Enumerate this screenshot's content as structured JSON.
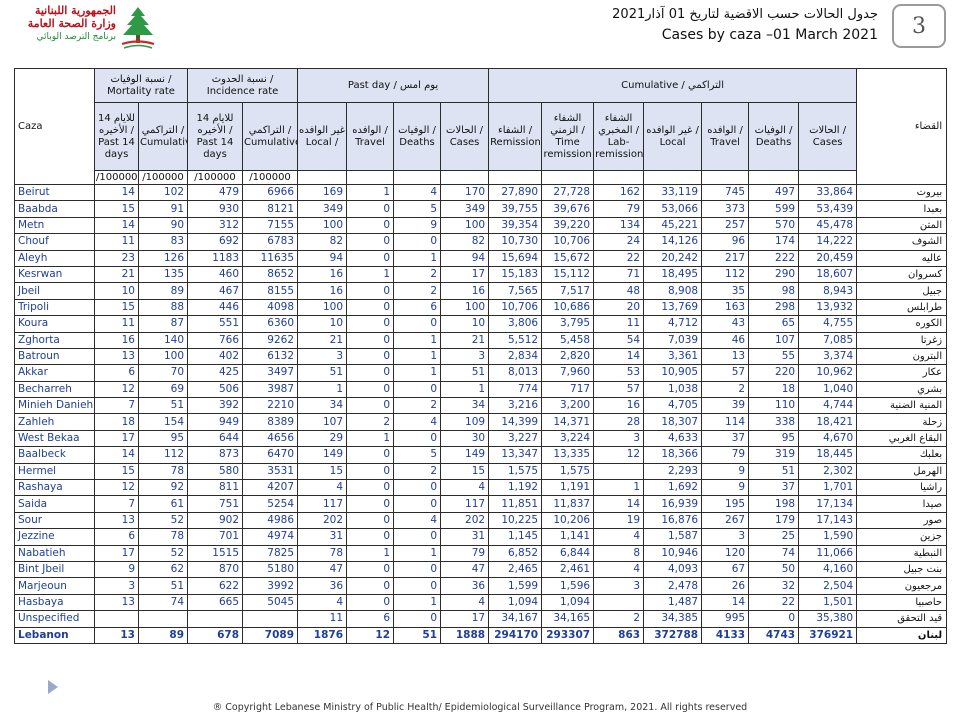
{
  "logo": {
    "line1": "الجمهورية اللبنانية",
    "line2": "وزارة الصحة العامة",
    "line3": "برنامج الترصد الوبائي"
  },
  "header": {
    "title_ar": "جدول الحالات حسب الاقضية لتاريخ 01 آذار2021",
    "title_en": "Cases by caza –01 March 2021",
    "page_number": "3"
  },
  "table_headers": {
    "caza": "Caza",
    "caza_ar": "القضاء",
    "mortality_rate": "نسبة الوفيات / Mortality rate",
    "incidence_rate": "نسبة الحدوث / Incidence rate",
    "past_day": "Past day / يوم امس",
    "cumulative": "Cumulative / التراكمي",
    "past14": "للايام 14 الأخيره / Past 14 days",
    "cumulative_col": "التراكمي / Cumulative",
    "local_day": "غير الوافده Local /",
    "travel": "الوافده / Travel",
    "deaths": "الوفيات / Deaths",
    "cases": "الحالات / Cases",
    "remission": "الشفاء / Remission",
    "time_remission": "الشفاء الزمني / Time remission",
    "lab_remission": "الشفاء المخبري / Lab-remission",
    "local_cum": "غير الوافده / Local",
    "unit": "/100000"
  },
  "rows": [
    {
      "name": "Beirut",
      "mr14": "14",
      "mrc": "102",
      "ir14": "479",
      "irc": "6966",
      "pd_local": "169",
      "pd_travel": "1",
      "pd_deaths": "4",
      "pd_cases": "170",
      "rem": "27,890",
      "time_rem": "27,728",
      "lab_rem": "162",
      "local": "33,119",
      "travel": "745",
      "deaths": "497",
      "cases": "33,864",
      "ar": "بيروت"
    },
    {
      "name": "Baabda",
      "mr14": "15",
      "mrc": "91",
      "ir14": "930",
      "irc": "8121",
      "pd_local": "349",
      "pd_travel": "0",
      "pd_deaths": "5",
      "pd_cases": "349",
      "rem": "39,755",
      "time_rem": "39,676",
      "lab_rem": "79",
      "local": "53,066",
      "travel": "373",
      "deaths": "599",
      "cases": "53,439",
      "ar": "بعبدا"
    },
    {
      "name": "Metn",
      "mr14": "14",
      "mrc": "90",
      "ir14": "312",
      "irc": "7155",
      "pd_local": "100",
      "pd_travel": "0",
      "pd_deaths": "9",
      "pd_cases": "100",
      "rem": "39,354",
      "time_rem": "39,220",
      "lab_rem": "134",
      "local": "45,221",
      "travel": "257",
      "deaths": "570",
      "cases": "45,478",
      "ar": "المتن"
    },
    {
      "name": "Chouf",
      "mr14": "11",
      "mrc": "83",
      "ir14": "692",
      "irc": "6783",
      "pd_local": "82",
      "pd_travel": "0",
      "pd_deaths": "0",
      "pd_cases": "82",
      "rem": "10,730",
      "time_rem": "10,706",
      "lab_rem": "24",
      "local": "14,126",
      "travel": "96",
      "deaths": "174",
      "cases": "14,222",
      "ar": "الشوف"
    },
    {
      "name": "Aleyh",
      "mr14": "23",
      "mrc": "126",
      "ir14": "1183",
      "irc": "11635",
      "pd_local": "94",
      "pd_travel": "0",
      "pd_deaths": "1",
      "pd_cases": "94",
      "rem": "15,694",
      "time_rem": "15,672",
      "lab_rem": "22",
      "local": "20,242",
      "travel": "217",
      "deaths": "222",
      "cases": "20,459",
      "ar": "عاليه"
    },
    {
      "name": "Kesrwan",
      "mr14": "21",
      "mrc": "135",
      "ir14": "460",
      "irc": "8652",
      "pd_local": "16",
      "pd_travel": "1",
      "pd_deaths": "2",
      "pd_cases": "17",
      "rem": "15,183",
      "time_rem": "15,112",
      "lab_rem": "71",
      "local": "18,495",
      "travel": "112",
      "deaths": "290",
      "cases": "18,607",
      "ar": "كسروان"
    },
    {
      "name": "Jbeil",
      "mr14": "10",
      "mrc": "89",
      "ir14": "467",
      "irc": "8155",
      "pd_local": "16",
      "pd_travel": "0",
      "pd_deaths": "2",
      "pd_cases": "16",
      "rem": "7,565",
      "time_rem": "7,517",
      "lab_rem": "48",
      "local": "8,908",
      "travel": "35",
      "deaths": "98",
      "cases": "8,943",
      "ar": "جبيل"
    },
    {
      "name": "Tripoli",
      "mr14": "15",
      "mrc": "88",
      "ir14": "446",
      "irc": "4098",
      "pd_local": "100",
      "pd_travel": "0",
      "pd_deaths": "6",
      "pd_cases": "100",
      "rem": "10,706",
      "time_rem": "10,686",
      "lab_rem": "20",
      "local": "13,769",
      "travel": "163",
      "deaths": "298",
      "cases": "13,932",
      "ar": "طرابلس"
    },
    {
      "name": "Koura",
      "mr14": "11",
      "mrc": "87",
      "ir14": "551",
      "irc": "6360",
      "pd_local": "10",
      "pd_travel": "0",
      "pd_deaths": "0",
      "pd_cases": "10",
      "rem": "3,806",
      "time_rem": "3,795",
      "lab_rem": "11",
      "local": "4,712",
      "travel": "43",
      "deaths": "65",
      "cases": "4,755",
      "ar": "الكوره"
    },
    {
      "name": "Zghorta",
      "mr14": "16",
      "mrc": "140",
      "ir14": "766",
      "irc": "9262",
      "pd_local": "21",
      "pd_travel": "0",
      "pd_deaths": "1",
      "pd_cases": "21",
      "rem": "5,512",
      "time_rem": "5,458",
      "lab_rem": "54",
      "local": "7,039",
      "travel": "46",
      "deaths": "107",
      "cases": "7,085",
      "ar": "زغرتا"
    },
    {
      "name": "Batroun",
      "mr14": "13",
      "mrc": "100",
      "ir14": "402",
      "irc": "6132",
      "pd_local": "3",
      "pd_travel": "0",
      "pd_deaths": "1",
      "pd_cases": "3",
      "rem": "2,834",
      "time_rem": "2,820",
      "lab_rem": "14",
      "local": "3,361",
      "travel": "13",
      "deaths": "55",
      "cases": "3,374",
      "ar": "البترون"
    },
    {
      "name": "Akkar",
      "mr14": "6",
      "mrc": "70",
      "ir14": "425",
      "irc": "3497",
      "pd_local": "51",
      "pd_travel": "0",
      "pd_deaths": "1",
      "pd_cases": "51",
      "rem": "8,013",
      "time_rem": "7,960",
      "lab_rem": "53",
      "local": "10,905",
      "travel": "57",
      "deaths": "220",
      "cases": "10,962",
      "ar": "عكار"
    },
    {
      "name": "Becharreh",
      "mr14": "12",
      "mrc": "69",
      "ir14": "506",
      "irc": "3987",
      "pd_local": "1",
      "pd_travel": "0",
      "pd_deaths": "0",
      "pd_cases": "1",
      "rem": "774",
      "time_rem": "717",
      "lab_rem": "57",
      "local": "1,038",
      "travel": "2",
      "deaths": "18",
      "cases": "1,040",
      "ar": "بشري"
    },
    {
      "name": "Minieh Danieh",
      "mr14": "7",
      "mrc": "51",
      "ir14": "392",
      "irc": "2210",
      "pd_local": "34",
      "pd_travel": "0",
      "pd_deaths": "2",
      "pd_cases": "34",
      "rem": "3,216",
      "time_rem": "3,200",
      "lab_rem": "16",
      "local": "4,705",
      "travel": "39",
      "deaths": "110",
      "cases": "4,744",
      "ar": "المنية الضنية"
    },
    {
      "name": "Zahleh",
      "mr14": "18",
      "mrc": "154",
      "ir14": "949",
      "irc": "8389",
      "pd_local": "107",
      "pd_travel": "2",
      "pd_deaths": "4",
      "pd_cases": "109",
      "rem": "14,399",
      "time_rem": "14,371",
      "lab_rem": "28",
      "local": "18,307",
      "travel": "114",
      "deaths": "338",
      "cases": "18,421",
      "ar": "زحلة"
    },
    {
      "name": "West Bekaa",
      "mr14": "17",
      "mrc": "95",
      "ir14": "644",
      "irc": "4656",
      "pd_local": "29",
      "pd_travel": "1",
      "pd_deaths": "0",
      "pd_cases": "30",
      "rem": "3,227",
      "time_rem": "3,224",
      "lab_rem": "3",
      "local": "4,633",
      "travel": "37",
      "deaths": "95",
      "cases": "4,670",
      "ar": "البقاع الغربي"
    },
    {
      "name": "Baalbeck",
      "mr14": "14",
      "mrc": "112",
      "ir14": "873",
      "irc": "6470",
      "pd_local": "149",
      "pd_travel": "0",
      "pd_deaths": "5",
      "pd_cases": "149",
      "rem": "13,347",
      "time_rem": "13,335",
      "lab_rem": "12",
      "local": "18,366",
      "travel": "79",
      "deaths": "319",
      "cases": "18,445",
      "ar": "بعلبك"
    },
    {
      "name": "Hermel",
      "mr14": "15",
      "mrc": "78",
      "ir14": "580",
      "irc": "3531",
      "pd_local": "15",
      "pd_travel": "0",
      "pd_deaths": "2",
      "pd_cases": "15",
      "rem": "1,575",
      "time_rem": "1,575",
      "lab_rem": "",
      "local": "2,293",
      "travel": "9",
      "deaths": "51",
      "cases": "2,302",
      "ar": "الهرمل"
    },
    {
      "name": "Rashaya",
      "mr14": "12",
      "mrc": "92",
      "ir14": "811",
      "irc": "4207",
      "pd_local": "4",
      "pd_travel": "0",
      "pd_deaths": "0",
      "pd_cases": "4",
      "rem": "1,192",
      "time_rem": "1,191",
      "lab_rem": "1",
      "local": "1,692",
      "travel": "9",
      "deaths": "37",
      "cases": "1,701",
      "ar": "راشيا"
    },
    {
      "name": "Saida",
      "mr14": "7",
      "mrc": "61",
      "ir14": "751",
      "irc": "5254",
      "pd_local": "117",
      "pd_travel": "0",
      "pd_deaths": "0",
      "pd_cases": "117",
      "rem": "11,851",
      "time_rem": "11,837",
      "lab_rem": "14",
      "local": "16,939",
      "travel": "195",
      "deaths": "198",
      "cases": "17,134",
      "ar": "صيدا"
    },
    {
      "name": "Sour",
      "mr14": "13",
      "mrc": "52",
      "ir14": "902",
      "irc": "4986",
      "pd_local": "202",
      "pd_travel": "0",
      "pd_deaths": "4",
      "pd_cases": "202",
      "rem": "10,225",
      "time_rem": "10,206",
      "lab_rem": "19",
      "local": "16,876",
      "travel": "267",
      "deaths": "179",
      "cases": "17,143",
      "ar": "صور"
    },
    {
      "name": "Jezzine",
      "mr14": "6",
      "mrc": "78",
      "ir14": "701",
      "irc": "4974",
      "pd_local": "31",
      "pd_travel": "0",
      "pd_deaths": "0",
      "pd_cases": "31",
      "rem": "1,145",
      "time_rem": "1,141",
      "lab_rem": "4",
      "local": "1,587",
      "travel": "3",
      "deaths": "25",
      "cases": "1,590",
      "ar": "جزين"
    },
    {
      "name": "Nabatieh",
      "mr14": "17",
      "mrc": "52",
      "ir14": "1515",
      "irc": "7825",
      "pd_local": "78",
      "pd_travel": "1",
      "pd_deaths": "1",
      "pd_cases": "79",
      "rem": "6,852",
      "time_rem": "6,844",
      "lab_rem": "8",
      "local": "10,946",
      "travel": "120",
      "deaths": "74",
      "cases": "11,066",
      "ar": "النبطية"
    },
    {
      "name": "Bint Jbeil",
      "mr14": "9",
      "mrc": "62",
      "ir14": "870",
      "irc": "5180",
      "pd_local": "47",
      "pd_travel": "0",
      "pd_deaths": "0",
      "pd_cases": "47",
      "rem": "2,465",
      "time_rem": "2,461",
      "lab_rem": "4",
      "local": "4,093",
      "travel": "67",
      "deaths": "50",
      "cases": "4,160",
      "ar": "بنت جبيل"
    },
    {
      "name": "Marjeoun",
      "mr14": "3",
      "mrc": "51",
      "ir14": "622",
      "irc": "3992",
      "pd_local": "36",
      "pd_travel": "0",
      "pd_deaths": "0",
      "pd_cases": "36",
      "rem": "1,599",
      "time_rem": "1,596",
      "lab_rem": "3",
      "local": "2,478",
      "travel": "26",
      "deaths": "32",
      "cases": "2,504",
      "ar": "مرجعيون"
    },
    {
      "name": "Hasbaya",
      "mr14": "13",
      "mrc": "74",
      "ir14": "665",
      "irc": "5045",
      "pd_local": "4",
      "pd_travel": "0",
      "pd_deaths": "1",
      "pd_cases": "4",
      "rem": "1,094",
      "time_rem": "1,094",
      "lab_rem": "",
      "local": "1,487",
      "travel": "14",
      "deaths": "22",
      "cases": "1,501",
      "ar": "حاصبيا"
    },
    {
      "name": "Unspecified",
      "mr14": "",
      "mrc": "",
      "ir14": "",
      "irc": "",
      "pd_local": "11",
      "pd_travel": "6",
      "pd_deaths": "0",
      "pd_cases": "17",
      "rem": "34,167",
      "time_rem": "34,165",
      "lab_rem": "2",
      "local": "34,385",
      "travel": "995",
      "deaths": "0",
      "cases": "35,380",
      "ar": "قيد التحقق"
    }
  ],
  "total": {
    "name": "Lebanon",
    "mr14": "13",
    "mrc": "89",
    "ir14": "678",
    "irc": "7089",
    "pd_local": "1876",
    "pd_travel": "12",
    "pd_deaths": "51",
    "pd_cases": "1888",
    "rem": "294170",
    "time_rem": "293307",
    "lab_rem": "863",
    "local": "372788",
    "travel": "4133",
    "deaths": "4743",
    "cases": "376921",
    "ar": "لبنان"
  },
  "footer": {
    "copyright": "® Copyright Lebanese Ministry of Public Health/ Epidemiological Surveillance Program, 2021. All rights reserved"
  },
  "colors": {
    "header_fill": "#dde3f2",
    "logo_red": "#b5121b",
    "logo_green": "#1f8a3a"
  }
}
